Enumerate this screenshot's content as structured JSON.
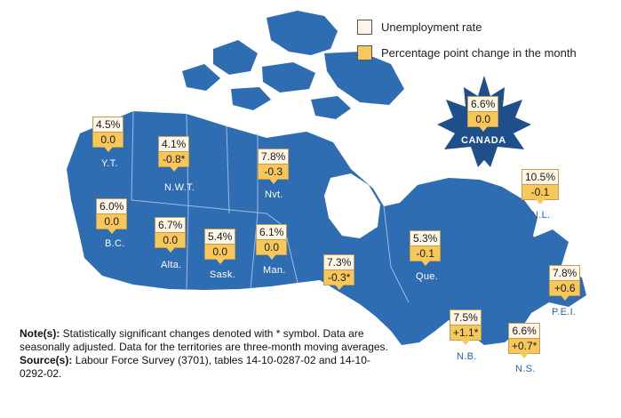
{
  "legend": {
    "rate_label": "Unemployment rate",
    "change_label": "Percentage point change in the month",
    "rate_color": "#fff6e7",
    "change_color": "#f6c85a"
  },
  "map_colors": {
    "land": "#2f6db3",
    "border": "#9dbbe0"
  },
  "national": {
    "name": "CANADA",
    "rate": "6.6%",
    "change": "0.0"
  },
  "regions": [
    {
      "abbr": "Y.T.",
      "rate": "4.5%",
      "change": "0.0"
    },
    {
      "abbr": "N.W.T.",
      "rate": "4.1%",
      "change": "-0.8*"
    },
    {
      "abbr": "Nvt.",
      "rate": "7.8%",
      "change": "-0.3"
    },
    {
      "abbr": "B.C.",
      "rate": "6.0%",
      "change": "0.0"
    },
    {
      "abbr": "Alta.",
      "rate": "6.7%",
      "change": "0.0"
    },
    {
      "abbr": "Sask.",
      "rate": "5.4%",
      "change": "0.0"
    },
    {
      "abbr": "Man.",
      "rate": "6.1%",
      "change": "0.0"
    },
    {
      "abbr": "Ont.",
      "rate": "7.3%",
      "change": "-0.3*"
    },
    {
      "abbr": "Que.",
      "rate": "5.3%",
      "change": "-0.1"
    },
    {
      "abbr": "N.L.",
      "rate": "10.5%",
      "change": "-0.1"
    },
    {
      "abbr": "N.B.",
      "rate": "7.5%",
      "change": "+1.1*"
    },
    {
      "abbr": "N.S.",
      "rate": "6.6%",
      "change": "+0.7*"
    },
    {
      "abbr": "P.E.I.",
      "rate": "7.8%",
      "change": "+0.6"
    }
  ],
  "notes": {
    "note_heading": "Note(s):",
    "note_text": "Statistically significant changes denoted with * symbol. Data are seasonally adjusted. Data for the territories are three-month moving averages.",
    "source_heading": "Source(s):",
    "source_text": "Labour Force Survey (3701), tables 14-10-0287-02 and 14-10-0292-02."
  }
}
